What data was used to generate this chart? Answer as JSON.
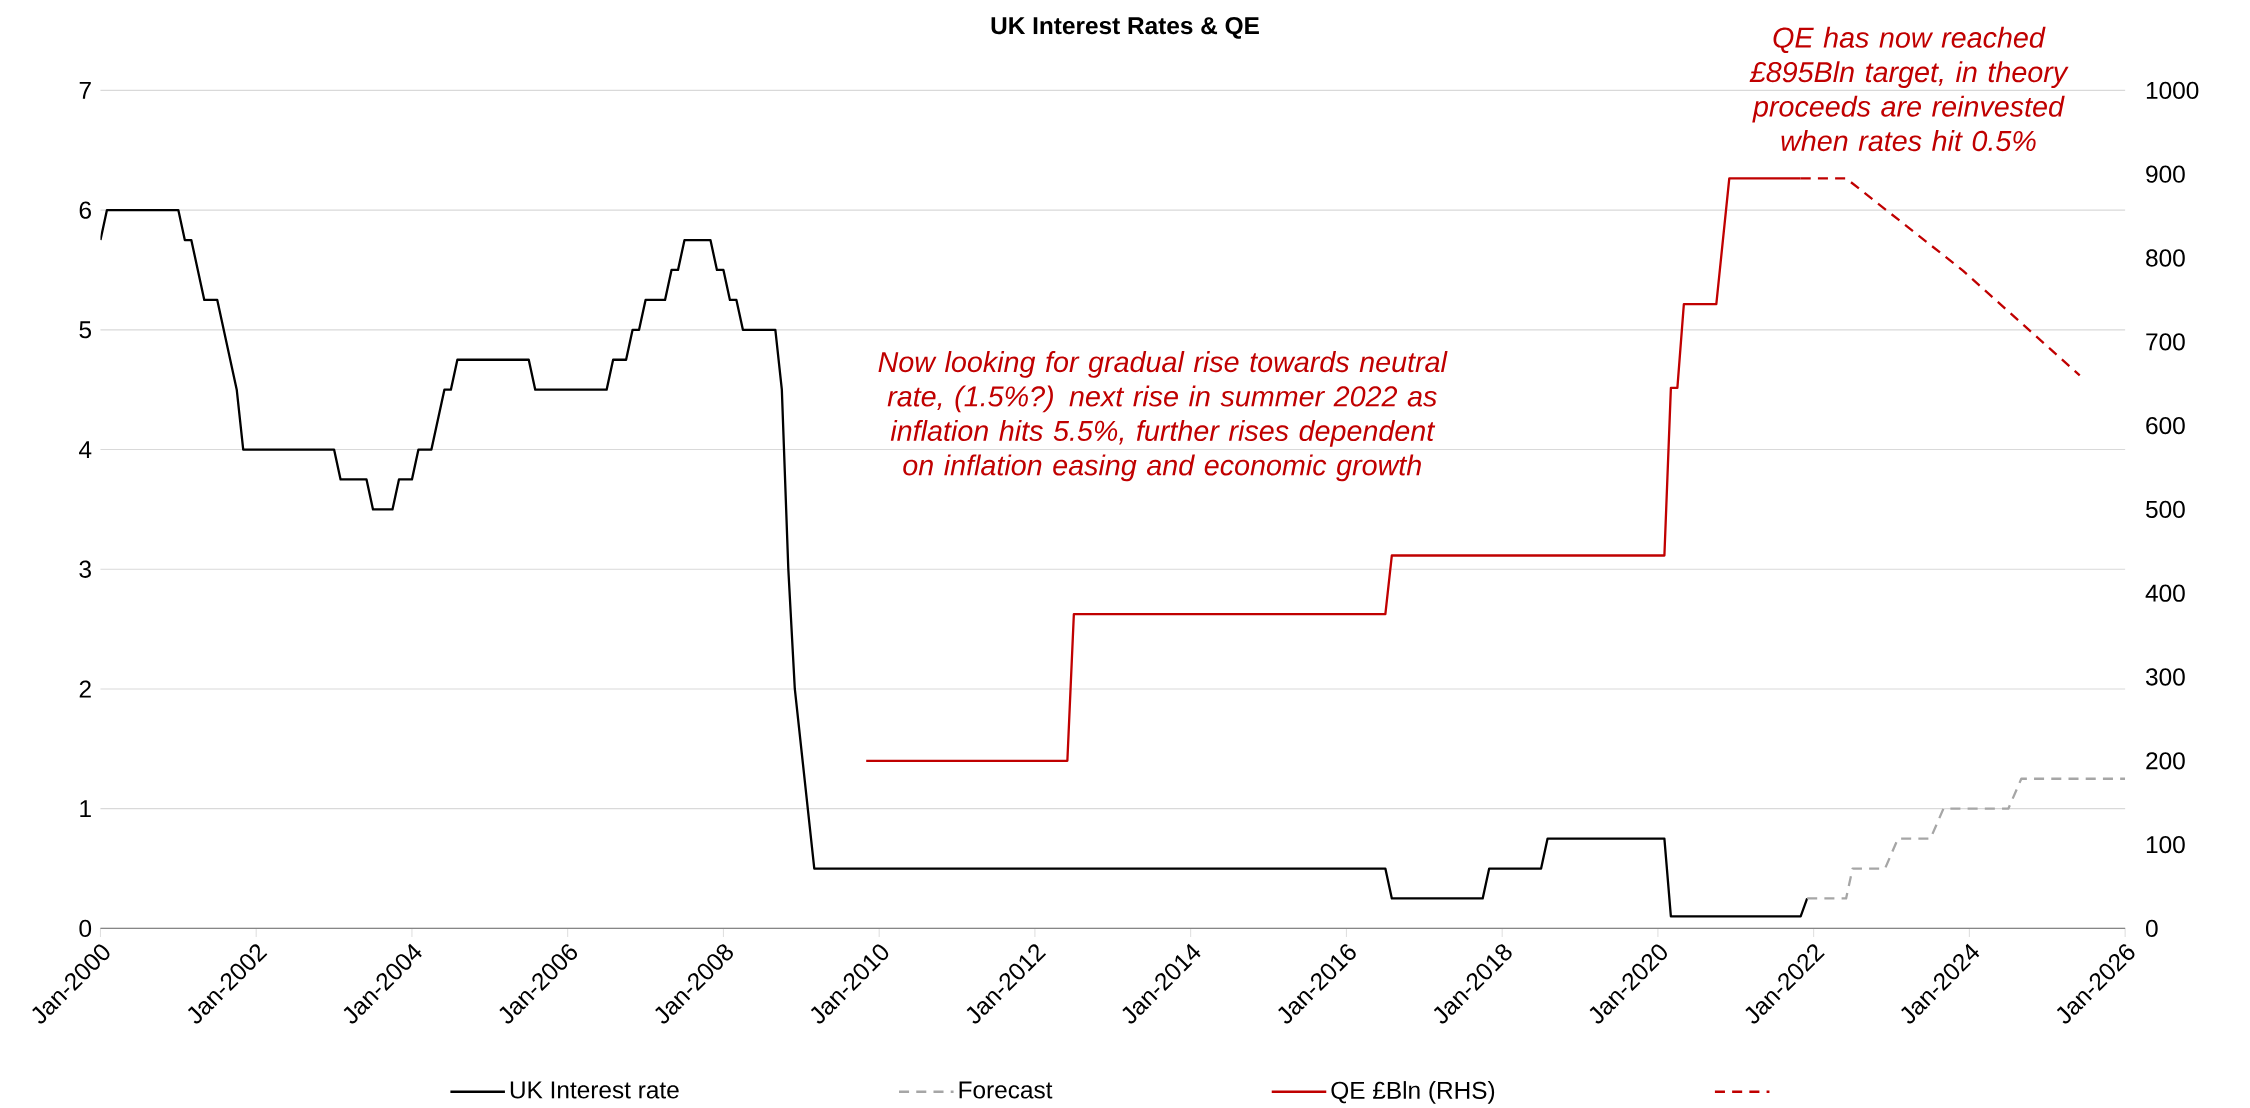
{
  "chart_data": {
    "type": "line",
    "title": "UK Interest Rates & QE",
    "annotations": [
      "Now looking for gradual rise towards neutral rate, (1.5%?) next rise in summer 2022 as inflation hits 5.5%, further rises dependent on inflation easing and economic growth",
      "QE has now reached £895Bln target, in theory proceeds are reinvested when rates hit 0.5%"
    ],
    "series": [
      {
        "name": "UK Interest rate",
        "color": "#000000",
        "line_style": "solid",
        "x": [
          "2000-01",
          "2000-02",
          "2001-01",
          "2001-02",
          "2001-03",
          "2001-05",
          "2001-07",
          "2001-10",
          "2001-11",
          "2003-01",
          "2003-02",
          "2003-06",
          "2003-07",
          "2003-10",
          "2003-11",
          "2004-01",
          "2004-02",
          "2004-04",
          "2004-06",
          "2004-07",
          "2004-08",
          "2005-07",
          "2005-08",
          "2006-07",
          "2006-08",
          "2006-10",
          "2006-11",
          "2006-12",
          "2007-01",
          "2007-04",
          "2007-05",
          "2007-06",
          "2007-07",
          "2007-11",
          "2007-12",
          "2008-01",
          "2008-02",
          "2008-03",
          "2008-04",
          "2008-09",
          "2008-10",
          "2008-11",
          "2008-12",
          "2009-03",
          "2016-07",
          "2016-08",
          "2017-10",
          "2017-11",
          "2018-07",
          "2018-08",
          "2020-02",
          "2020-03",
          "2021-11",
          "2021-12"
        ],
        "values": [
          5.75,
          6,
          6,
          5.75,
          5.75,
          5.25,
          5.25,
          4.5,
          4,
          4,
          3.75,
          3.75,
          3.5,
          3.5,
          3.75,
          3.75,
          4,
          4,
          4.5,
          4.5,
          4.75,
          4.75,
          4.5,
          4.5,
          4.75,
          4.75,
          5,
          5,
          5.25,
          5.25,
          5.5,
          5.5,
          5.75,
          5.75,
          5.5,
          5.5,
          5.25,
          5.25,
          5,
          5,
          4.5,
          3,
          2,
          0.5,
          0.5,
          0.25,
          0.25,
          0.5,
          0.5,
          0.75,
          0.75,
          0.1,
          0.1,
          0.25
        ]
      },
      {
        "name": "Forecast",
        "color": "#a6a6a6",
        "line_style": "dashed",
        "x": [
          "2021-12",
          "2022-06",
          "2022-07",
          "2022-12",
          "2023-02",
          "2023-07",
          "2023-09",
          "2024-07",
          "2024-09",
          "2026-01"
        ],
        "values": [
          0.25,
          0.25,
          0.5,
          0.5,
          0.75,
          0.75,
          1,
          1,
          1.25,
          1.25
        ]
      },
      {
        "name": "QE £Bln (RHS)",
        "color": "#c00000",
        "line_style": "solid",
        "axis": "y2",
        "x": [
          "2009-11",
          "2012-06",
          "2012-07",
          "2016-07",
          "2016-08",
          "2020-02",
          "2020-03",
          "2020-04",
          "2020-05",
          "2020-10",
          "2020-12",
          "2021-11"
        ],
        "values": [
          200,
          200,
          375,
          375,
          445,
          445,
          645,
          645,
          745,
          745,
          895,
          895
        ]
      },
      {
        "color": "#c00000",
        "line_style": "dashed",
        "axis": "y2",
        "x": [
          "2021-11",
          "2022-06",
          "2023-12",
          "2025-06"
        ],
        "values": [
          895,
          895,
          785,
          660
        ]
      }
    ],
    "xlim": [
      "2000-01",
      "2026-01"
    ],
    "xticks": [
      {
        "value": "2000-01",
        "label": "Jan-2000"
      },
      {
        "value": "2002-01",
        "label": "Jan-2002"
      },
      {
        "value": "2004-01",
        "label": "Jan-2004"
      },
      {
        "value": "2006-01",
        "label": "Jan-2006"
      },
      {
        "value": "2008-01",
        "label": "Jan-2008"
      },
      {
        "value": "2010-01",
        "label": "Jan-2010"
      },
      {
        "value": "2012-01",
        "label": "Jan-2012"
      },
      {
        "value": "2014-01",
        "label": "Jan-2014"
      },
      {
        "value": "2016-01",
        "label": "Jan-2016"
      },
      {
        "value": "2018-01",
        "label": "Jan-2018"
      },
      {
        "value": "2020-01",
        "label": "Jan-2020"
      },
      {
        "value": "2022-01",
        "label": "Jan-2022"
      },
      {
        "value": "2024-01",
        "label": "Jan-2024"
      },
      {
        "value": "2026-01",
        "label": "Jan-2026"
      }
    ],
    "ylim": [
      0,
      7
    ],
    "yticks": [
      0,
      1,
      2,
      3,
      4,
      5,
      6,
      7
    ],
    "y2lim": [
      0,
      1000
    ],
    "y2ticks": [
      0,
      100,
      200,
      300,
      400,
      500,
      600,
      700,
      800,
      900,
      1000
    ],
    "grid": "y",
    "legend": "bottom"
  }
}
